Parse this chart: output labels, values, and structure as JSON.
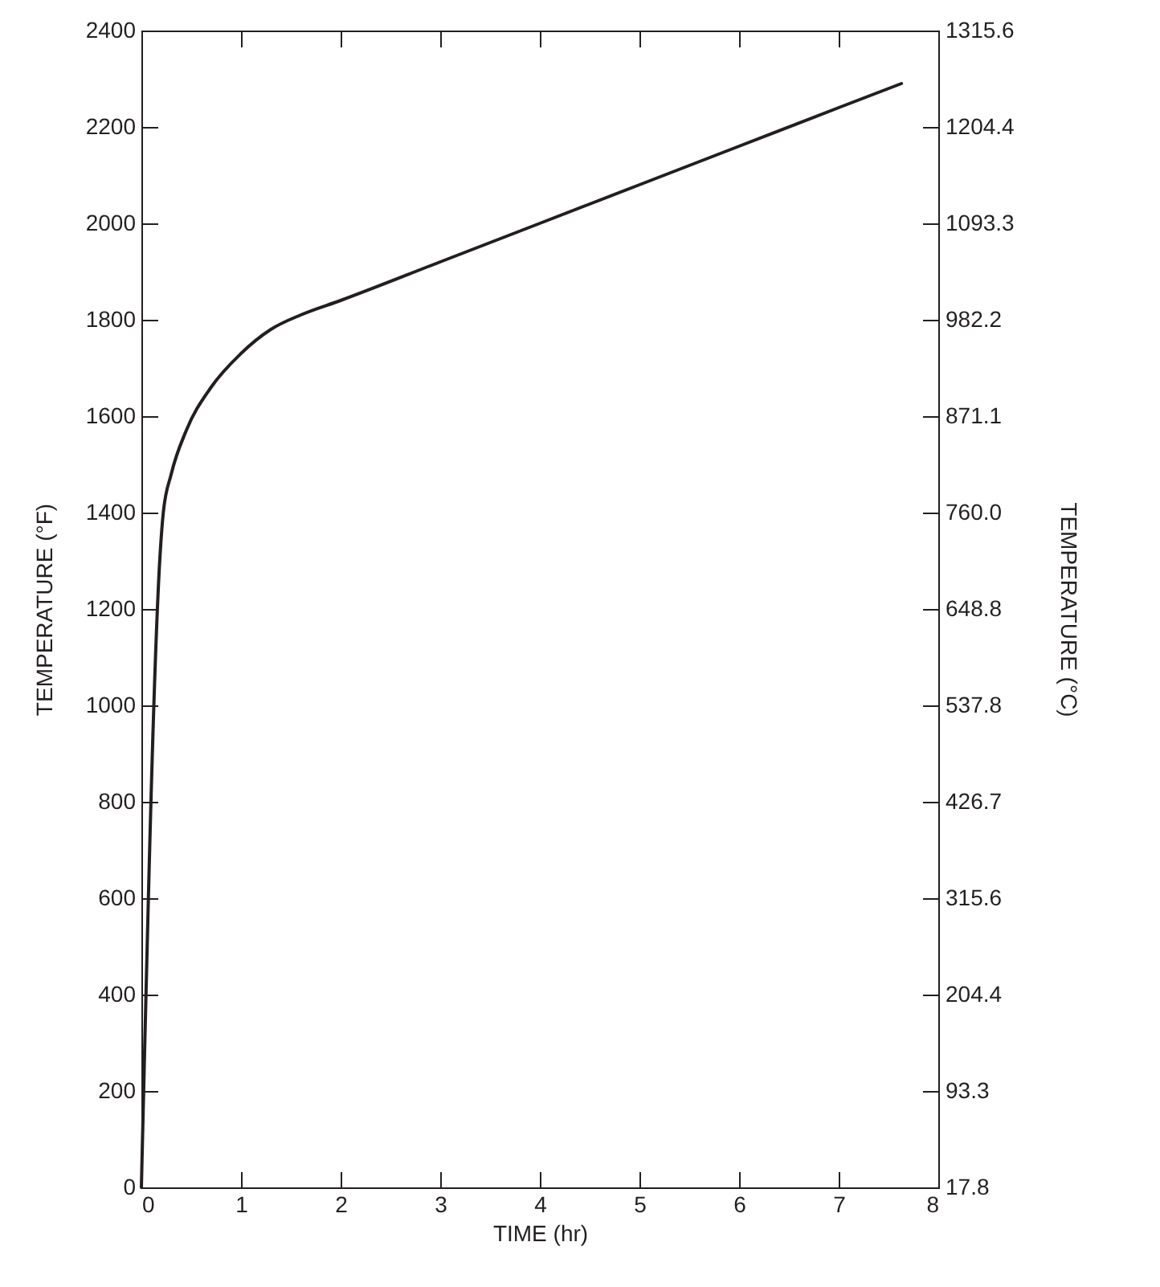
{
  "chart_data": {
    "type": "line",
    "xlabel": "TIME (hr)",
    "ylabel": "TEMPERATURE (°F)",
    "y2label": "TEMPERATURE (°C)",
    "x": [
      0,
      0.19,
      0.22,
      0.3,
      0.45,
      0.7,
      1.0,
      1.3,
      1.6,
      2.0,
      3,
      4,
      5,
      6,
      7,
      7.63
    ],
    "series": [
      {
        "color": "#231f20",
        "values": [
          0,
          1320,
          1400,
          1480,
          1570,
          1660,
          1730,
          1780,
          1810,
          1840,
          1920,
          2000,
          2080,
          2160,
          2240,
          2290
        ]
      }
    ],
    "xlim": [
      0,
      8
    ],
    "xticks": [
      0,
      1,
      2,
      3,
      4,
      5,
      6,
      7,
      8
    ],
    "ylim": [
      0,
      2400
    ],
    "yticks": [
      0,
      200,
      400,
      600,
      800,
      1000,
      1200,
      1400,
      1600,
      1800,
      2000,
      2200,
      2400
    ],
    "y2lim": [
      -17.8,
      1315.6
    ],
    "y2ticks": [
      {
        "value": -17.8,
        "label": "17.8"
      },
      93.3,
      204.4,
      315.6,
      426.7,
      537.8,
      648.8,
      {
        "value": 760,
        "label": "760.0"
      },
      871.1,
      982.2,
      1093.3,
      1204.4,
      1315.6
    ],
    "tick_labels": "xy",
    "marker": "none",
    "line_style": "solid"
  }
}
